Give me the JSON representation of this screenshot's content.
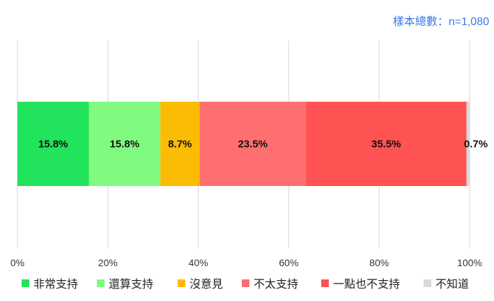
{
  "sample_note": "樣本總數：n=1,080",
  "chart_data": {
    "type": "bar",
    "orientation": "horizontal",
    "stacked": true,
    "xlim": [
      0,
      100
    ],
    "ticks": [
      "0%",
      "20%",
      "40%",
      "60%",
      "80%",
      "100%"
    ],
    "grid": true,
    "legend_position": "bottom",
    "series": [
      {
        "name": "非常支持",
        "value": 15.8,
        "label": "15.8%",
        "color": "#22e35c"
      },
      {
        "name": "還算支持",
        "value": 15.8,
        "label": "15.8%",
        "color": "#80fb80"
      },
      {
        "name": "沒意見",
        "value": 8.7,
        "label": "8.7%",
        "color": "#fbbc04"
      },
      {
        "name": "不太支持",
        "value": 23.5,
        "label": "23.5%",
        "color": "#ff6f6f"
      },
      {
        "name": "一點也不支持",
        "value": 35.5,
        "label": "35.5%",
        "color": "#ff5252"
      },
      {
        "name": "不知道",
        "value": 0.7,
        "label": "0.7%",
        "color": "#d9d9d9"
      }
    ]
  }
}
